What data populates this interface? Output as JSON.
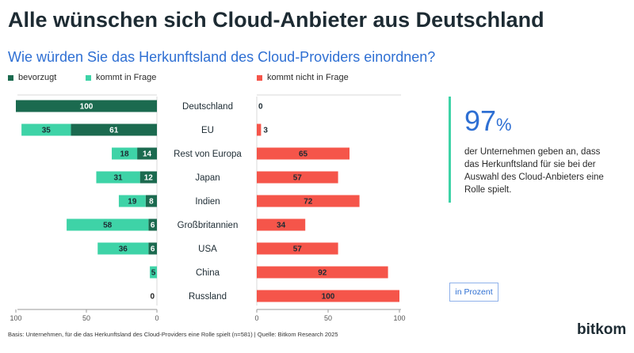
{
  "header": {
    "title": "Alle wünschen sich Cloud-Anbieter aus Deutschland",
    "subtitle": "Wie würden Sie das Herkunftsland des Cloud-Providers einordnen?"
  },
  "legend": {
    "preferred": "bevorzugt",
    "considered": "kommt in Frage",
    "not_considered": "kommt nicht in Frage"
  },
  "colors": {
    "preferred": "#1b6a4f",
    "considered": "#3ed3a7",
    "not_considered": "#f5554a"
  },
  "chart_data": {
    "type": "bar",
    "orientation": "horizontal",
    "categories": [
      "Deutschland",
      "EU",
      "Rest von Europa",
      "Japan",
      "Indien",
      "Großbritannien",
      "USA",
      "China",
      "Russland"
    ],
    "series": [
      {
        "name": "bevorzugt",
        "values": [
          100,
          61,
          14,
          12,
          8,
          6,
          6,
          0,
          0
        ]
      },
      {
        "name": "kommt in Frage",
        "values": [
          0,
          35,
          18,
          31,
          19,
          58,
          36,
          5,
          0
        ]
      },
      {
        "name": "kommt nicht in Frage",
        "values": [
          0,
          3,
          65,
          57,
          72,
          34,
          57,
          92,
          100
        ]
      }
    ],
    "left_axis": {
      "ticks": [
        100,
        50,
        0
      ],
      "range": [
        0,
        100
      ]
    },
    "right_axis": {
      "ticks": [
        0,
        50,
        100
      ],
      "range": [
        0,
        100
      ]
    }
  },
  "kpi": {
    "value": "97",
    "unit": "%",
    "text": "der Unternehmen geben an, dass das Herkunftsland für sie bei der Auswahl des Cloud-Anbieters eine Rolle spielt."
  },
  "unit_label": "in Prozent",
  "footnote": "Basis: Unternehmen, für die das Herkunftsland des Cloud-Providers eine Rolle spielt (n=581) | Quelle: Bitkom Research 2025",
  "logo": "bitkom"
}
